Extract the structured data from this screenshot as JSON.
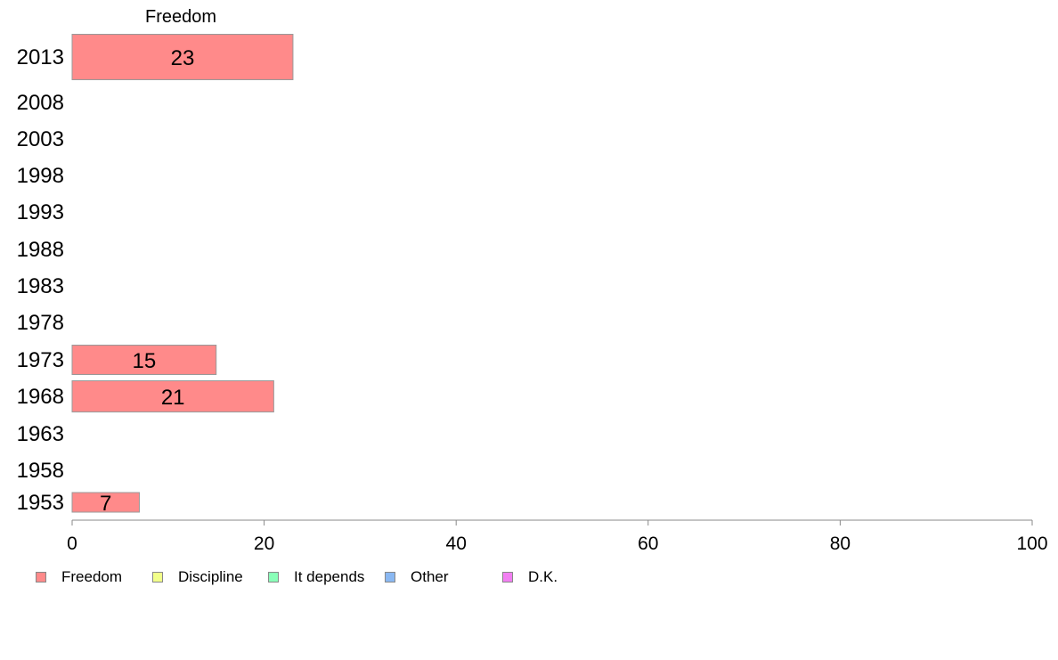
{
  "chart_data": {
    "type": "bar",
    "orientation": "horizontal",
    "title": "Freedom",
    "categories": [
      "2013",
      "2008",
      "2003",
      "1998",
      "1993",
      "1988",
      "1983",
      "1978",
      "1973",
      "1968",
      "1963",
      "1958",
      "1953"
    ],
    "series": [
      {
        "name": "Freedom",
        "color": "#ff8a8a",
        "values": [
          23,
          null,
          null,
          null,
          null,
          null,
          null,
          null,
          15,
          21,
          null,
          null,
          7
        ]
      }
    ],
    "xlim": [
      0,
      100
    ],
    "xticks": [
      "0",
      "20",
      "40",
      "60",
      "80",
      "100"
    ],
    "grid": false,
    "legend_position": "bottom-left"
  },
  "legend": {
    "items": [
      {
        "label": "Freedom",
        "color": "#ff8a8a"
      },
      {
        "label": "Discipline",
        "color": "#f2ff8a"
      },
      {
        "label": "It depends",
        "color": "#8affb8"
      },
      {
        "label": "Other",
        "color": "#8ab8f2"
      },
      {
        "label": "D.K.",
        "color": "#f27ff2"
      }
    ]
  }
}
